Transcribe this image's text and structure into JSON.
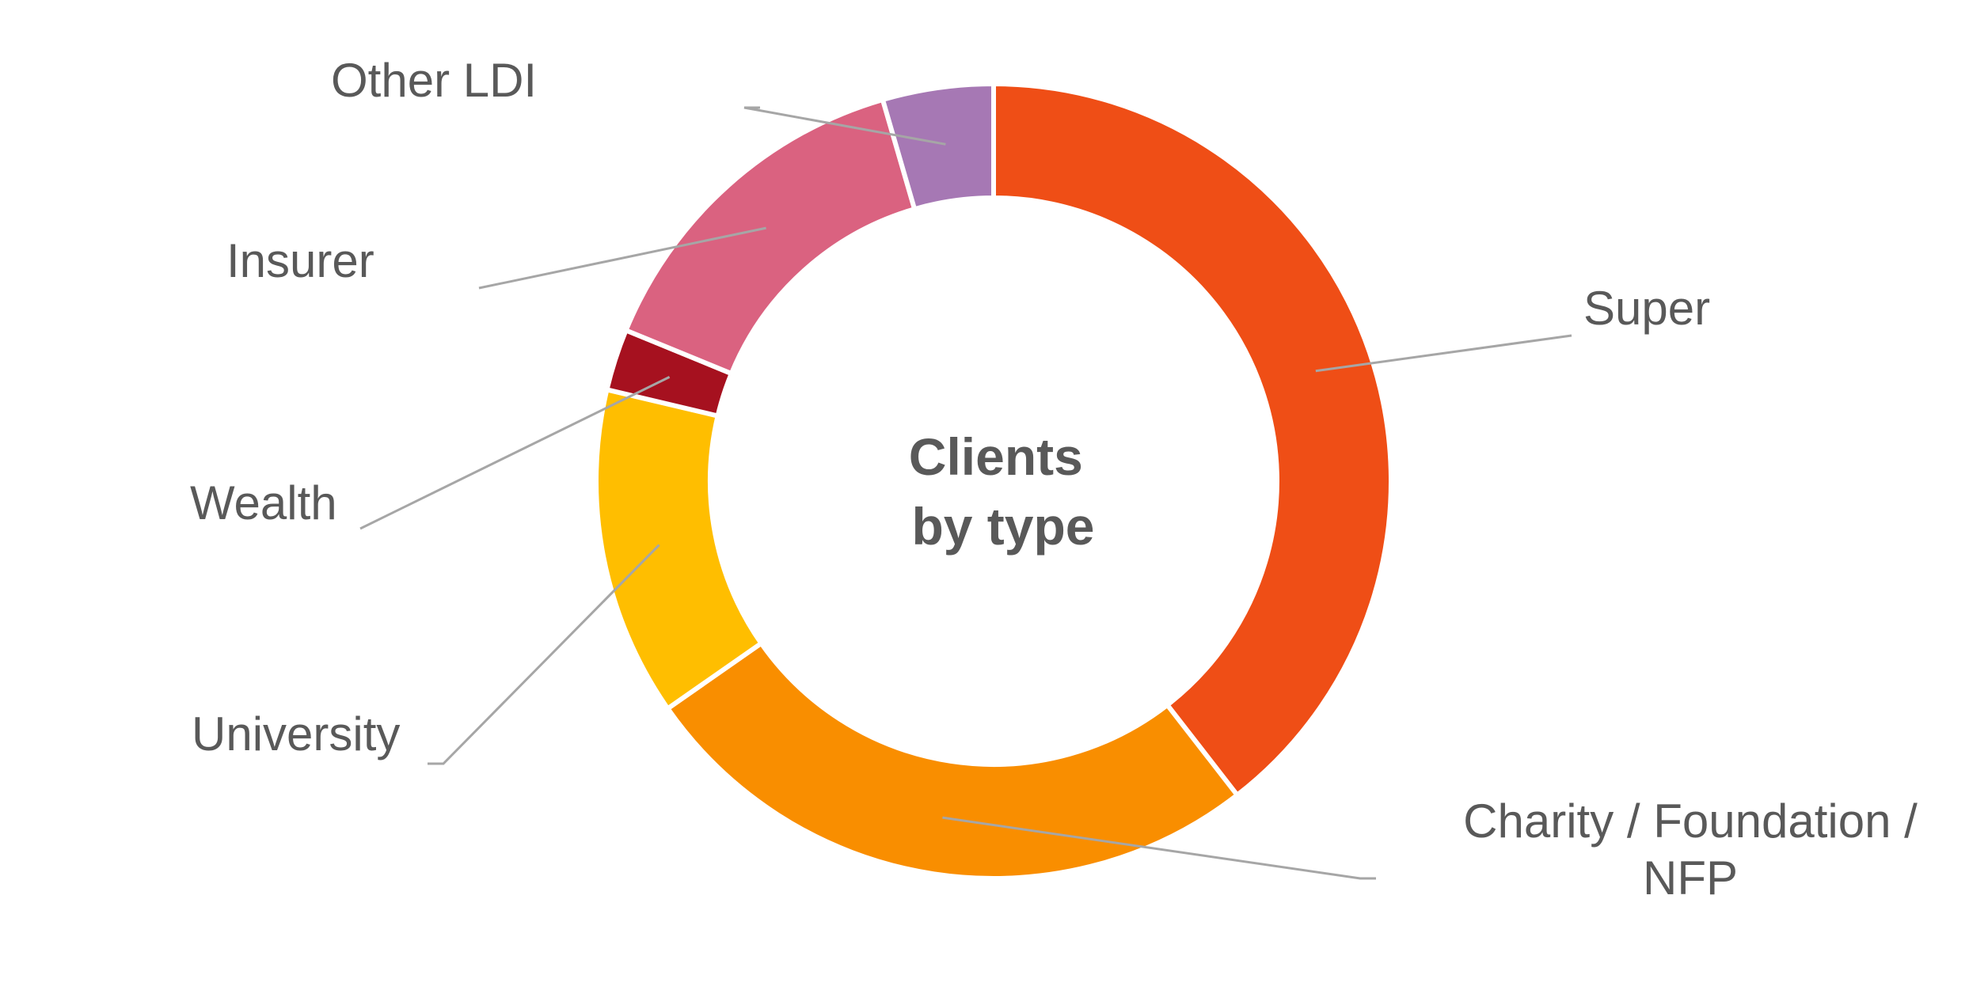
{
  "chart_data": {
    "type": "pie",
    "variant": "donut",
    "title": "Clients by type",
    "title_lines": [
      "Clients",
      "by type"
    ],
    "slices": [
      {
        "name": "Super",
        "label_lines": [
          "Super"
        ],
        "value": 39.5,
        "color": "#EF4E16"
      },
      {
        "name": "Charity / Foundation / NFP",
        "label_lines": [
          "Charity / Foundation /",
          "NFP"
        ],
        "value": 25.8,
        "color": "#F98E00"
      },
      {
        "name": "University",
        "label_lines": [
          "University"
        ],
        "value": 13.4,
        "color": "#FFBE00"
      },
      {
        "name": "Wealth",
        "label_lines": [
          "Wealth"
        ],
        "value": 2.5,
        "color": "#A6111F"
      },
      {
        "name": "Insurer",
        "label_lines": [
          "Insurer"
        ],
        "value": 14.3,
        "color": "#DA6280"
      },
      {
        "name": "Other LDI",
        "label_lines": [
          "Other LDI"
        ],
        "value": 4.5,
        "color": "#A678B4"
      }
    ],
    "legend": "none",
    "grid": false
  }
}
